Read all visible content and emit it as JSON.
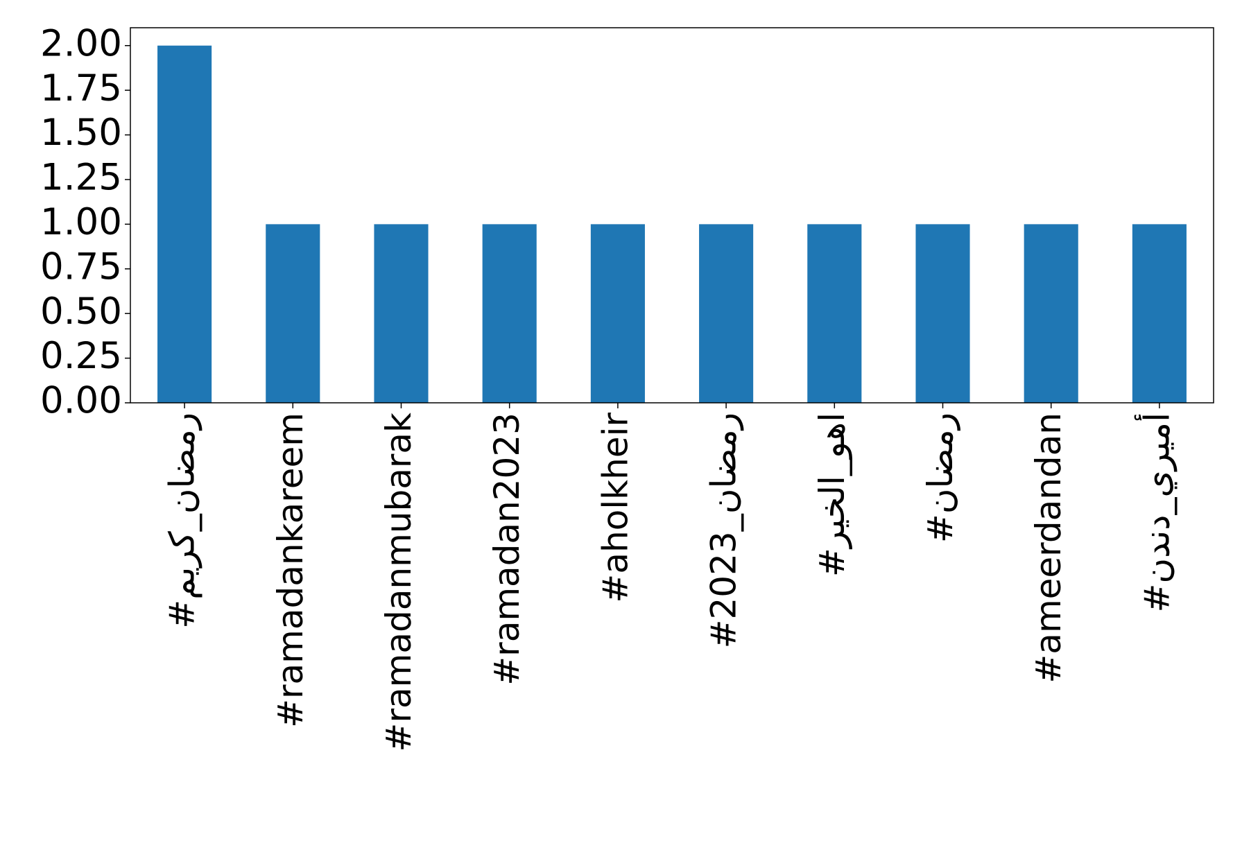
{
  "chart_data": {
    "type": "bar",
    "categories": [
      "#رمضان_كريم",
      "#ramadankareem",
      "#ramadanmubarak",
      "#ramadan2023",
      "#aholkheir",
      "#رمضان_2023",
      "#اهو_الخير",
      "#رمضان",
      "#ameerdandan",
      "#أميري_دندن"
    ],
    "values": [
      2,
      1,
      1,
      1,
      1,
      1,
      1,
      1,
      1,
      1
    ],
    "color": "#1f77b4",
    "ylim": [
      0,
      2.1
    ],
    "yticks": [
      {
        "value": 0,
        "label": "0.00"
      },
      {
        "value": 0.25,
        "label": "0.25"
      },
      {
        "value": 0.5,
        "label": "0.50"
      },
      {
        "value": 0.75,
        "label": "0.75"
      },
      {
        "value": 1,
        "label": "1.00"
      },
      {
        "value": 1.25,
        "label": "1.25"
      },
      {
        "value": 1.5,
        "label": "1.50"
      },
      {
        "value": 1.75,
        "label": "1.75"
      },
      {
        "value": 2,
        "label": "2.00"
      }
    ],
    "grid": false
  }
}
